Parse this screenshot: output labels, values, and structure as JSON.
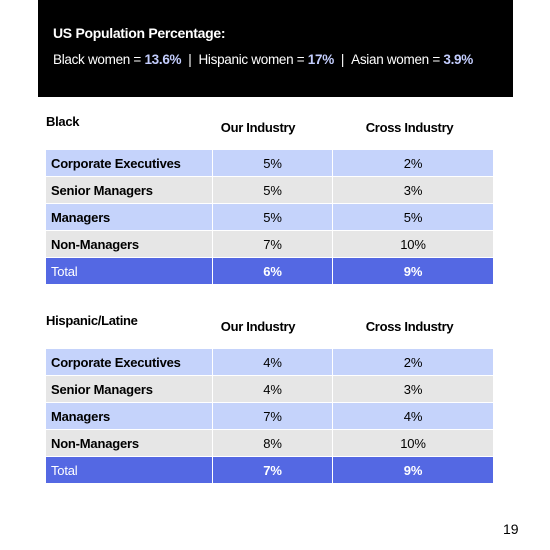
{
  "banner": {
    "title": "US Population Percentage:",
    "items": [
      {
        "label": "Black women = ",
        "value": "13.6%"
      },
      {
        "label": "Hispanic women = ",
        "value": "17%"
      },
      {
        "label": "Asian women = ",
        "value": "3.9%"
      }
    ],
    "separator": "|"
  },
  "tables": [
    {
      "title": "Black",
      "col1": "Our Industry",
      "col2": "Cross Industry",
      "rows": [
        {
          "label": "Corporate Executives",
          "ours": "5%",
          "cross": "2%"
        },
        {
          "label": "Senior Managers",
          "ours": "5%",
          "cross": "3%"
        },
        {
          "label": "Managers",
          "ours": "5%",
          "cross": "5%"
        },
        {
          "label": "Non-Managers",
          "ours": "7%",
          "cross": "10%"
        },
        {
          "label": "Total",
          "ours": "6%",
          "cross": "9%"
        }
      ]
    },
    {
      "title": "Hispanic/Latine",
      "col1": "Our Industry",
      "col2": "Cross Industry",
      "rows": [
        {
          "label": "Corporate Executives",
          "ours": "4%",
          "cross": "2%"
        },
        {
          "label": "Senior Managers",
          "ours": "4%",
          "cross": "3%"
        },
        {
          "label": "Managers",
          "ours": "7%",
          "cross": "4%"
        },
        {
          "label": "Non-Managers",
          "ours": "8%",
          "cross": "10%"
        },
        {
          "label": "Total",
          "ours": "7%",
          "cross": "9%"
        }
      ]
    }
  ],
  "page_number": "19",
  "colors": {
    "banner_bg": "#000000",
    "banner_value": "#c3cdfd",
    "row_blue": "#c5d3fb",
    "row_gray": "#e6e6e6",
    "row_total": "#5468e3"
  }
}
